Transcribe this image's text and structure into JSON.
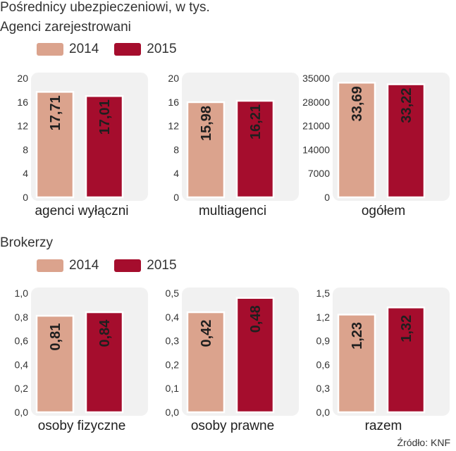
{
  "title": "Pośrednicy ubezpieczeniowi, w tys.",
  "colors": {
    "y2014": "#dba38d",
    "y2015": "#a50d2d",
    "panel_bg": "#f1f1f1",
    "text": "#333333"
  },
  "sections": [
    {
      "subtitle": "Agenci zarejestrowani",
      "legend": [
        "2014",
        "2015"
      ]
    },
    {
      "subtitle": "Brokerzy",
      "legend": [
        "2014",
        "2015"
      ]
    }
  ],
  "source": "Źródło: KNF",
  "chart_data": [
    {
      "type": "bar",
      "section": "Agenci zarejestrowani",
      "xlabel": "agenci wyłączni",
      "categories": [
        "2014",
        "2015"
      ],
      "values": [
        17.71,
        17.01
      ],
      "labels": [
        "17,71",
        "17,01"
      ],
      "ylim": [
        0,
        20
      ],
      "yticks": [
        "0",
        "4",
        "8",
        "12",
        "16",
        "20"
      ]
    },
    {
      "type": "bar",
      "section": "Agenci zarejestrowani",
      "xlabel": "multiagenci",
      "categories": [
        "2014",
        "2015"
      ],
      "values": [
        15.98,
        16.21
      ],
      "labels": [
        "15,98",
        "16,21"
      ],
      "ylim": [
        0,
        20
      ],
      "yticks": [
        "0",
        "4",
        "8",
        "12",
        "16",
        "20"
      ]
    },
    {
      "type": "bar",
      "section": "Agenci zarejestrowani",
      "xlabel": "ogółem",
      "categories": [
        "2014",
        "2015"
      ],
      "values": [
        33690,
        33220
      ],
      "labels": [
        "33,69",
        "33,22"
      ],
      "ylim": [
        0,
        35000
      ],
      "yticks": [
        "0",
        "7000",
        "14000",
        "21000",
        "28000",
        "35000"
      ]
    },
    {
      "type": "bar",
      "section": "Brokerzy",
      "xlabel": "osoby fizyczne",
      "categories": [
        "2014",
        "2015"
      ],
      "values": [
        0.81,
        0.84
      ],
      "labels": [
        "0,81",
        "0,84"
      ],
      "ylim": [
        0,
        1.0
      ],
      "yticks": [
        "0,0",
        "0,2",
        "0,4",
        "0,6",
        "0,8",
        "1,0"
      ]
    },
    {
      "type": "bar",
      "section": "Brokerzy",
      "xlabel": "osoby prawne",
      "categories": [
        "2014",
        "2015"
      ],
      "values": [
        0.42,
        0.48
      ],
      "labels": [
        "0,42",
        "0,48"
      ],
      "ylim": [
        0,
        0.5
      ],
      "yticks": [
        "0,0",
        "0,1",
        "0,2",
        "0,3",
        "0,4",
        "0,5"
      ]
    },
    {
      "type": "bar",
      "section": "Brokerzy",
      "xlabel": "razem",
      "categories": [
        "2014",
        "2015"
      ],
      "values": [
        1.23,
        1.32
      ],
      "labels": [
        "1,23",
        "1,32"
      ],
      "ylim": [
        0,
        1.5
      ],
      "yticks": [
        "0,0",
        "0,3",
        "0,6",
        "0,9",
        "1,2",
        "1,5"
      ]
    }
  ]
}
